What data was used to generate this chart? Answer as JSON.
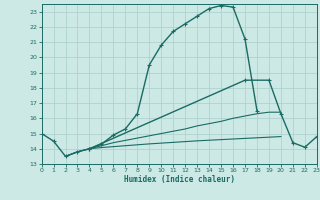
{
  "xlabel": "Humidex (Indice chaleur)",
  "xlim": [
    0,
    23
  ],
  "ylim": [
    13,
    23.5
  ],
  "background_color": "#cce9e6",
  "grid_color": "#aacfcc",
  "line_color": "#1a6b63",
  "xticks": [
    0,
    1,
    2,
    3,
    4,
    5,
    6,
    7,
    8,
    9,
    10,
    11,
    12,
    13,
    14,
    15,
    16,
    17,
    18,
    19,
    20,
    21,
    22,
    23
  ],
  "yticks": [
    13,
    14,
    15,
    16,
    17,
    18,
    19,
    20,
    21,
    22,
    23
  ],
  "line1_x": [
    0,
    1,
    2,
    3,
    4,
    5,
    6,
    7,
    8,
    9,
    10,
    11,
    12,
    13,
    14,
    15,
    16,
    17,
    18
  ],
  "line1_y": [
    15.0,
    14.5,
    13.5,
    13.8,
    14.0,
    14.3,
    14.9,
    15.3,
    16.3,
    19.5,
    20.8,
    21.7,
    22.2,
    22.7,
    23.2,
    23.4,
    23.3,
    21.2,
    16.5
  ],
  "line2_x": [
    4,
    17,
    19,
    20,
    21,
    22,
    23
  ],
  "line2_y": [
    14.0,
    18.5,
    18.5,
    16.3,
    14.4,
    14.1,
    14.8
  ],
  "line3_x": [
    2,
    3,
    4,
    5,
    6,
    7,
    8,
    9,
    10,
    11,
    12,
    13,
    14,
    15,
    16,
    17,
    18,
    19,
    20
  ],
  "line3_y": [
    13.5,
    13.8,
    14.0,
    14.2,
    14.4,
    14.55,
    14.7,
    14.85,
    15.0,
    15.15,
    15.3,
    15.5,
    15.65,
    15.8,
    16.0,
    16.15,
    16.3,
    16.4,
    16.4
  ],
  "line4_x": [
    2,
    3,
    4,
    5,
    6,
    7,
    8,
    9,
    10,
    11,
    12,
    13,
    14,
    15,
    16,
    17,
    18,
    19,
    20
  ],
  "line4_y": [
    13.5,
    13.8,
    14.0,
    14.08,
    14.14,
    14.2,
    14.26,
    14.32,
    14.37,
    14.42,
    14.47,
    14.52,
    14.56,
    14.6,
    14.64,
    14.68,
    14.72,
    14.76,
    14.8
  ]
}
